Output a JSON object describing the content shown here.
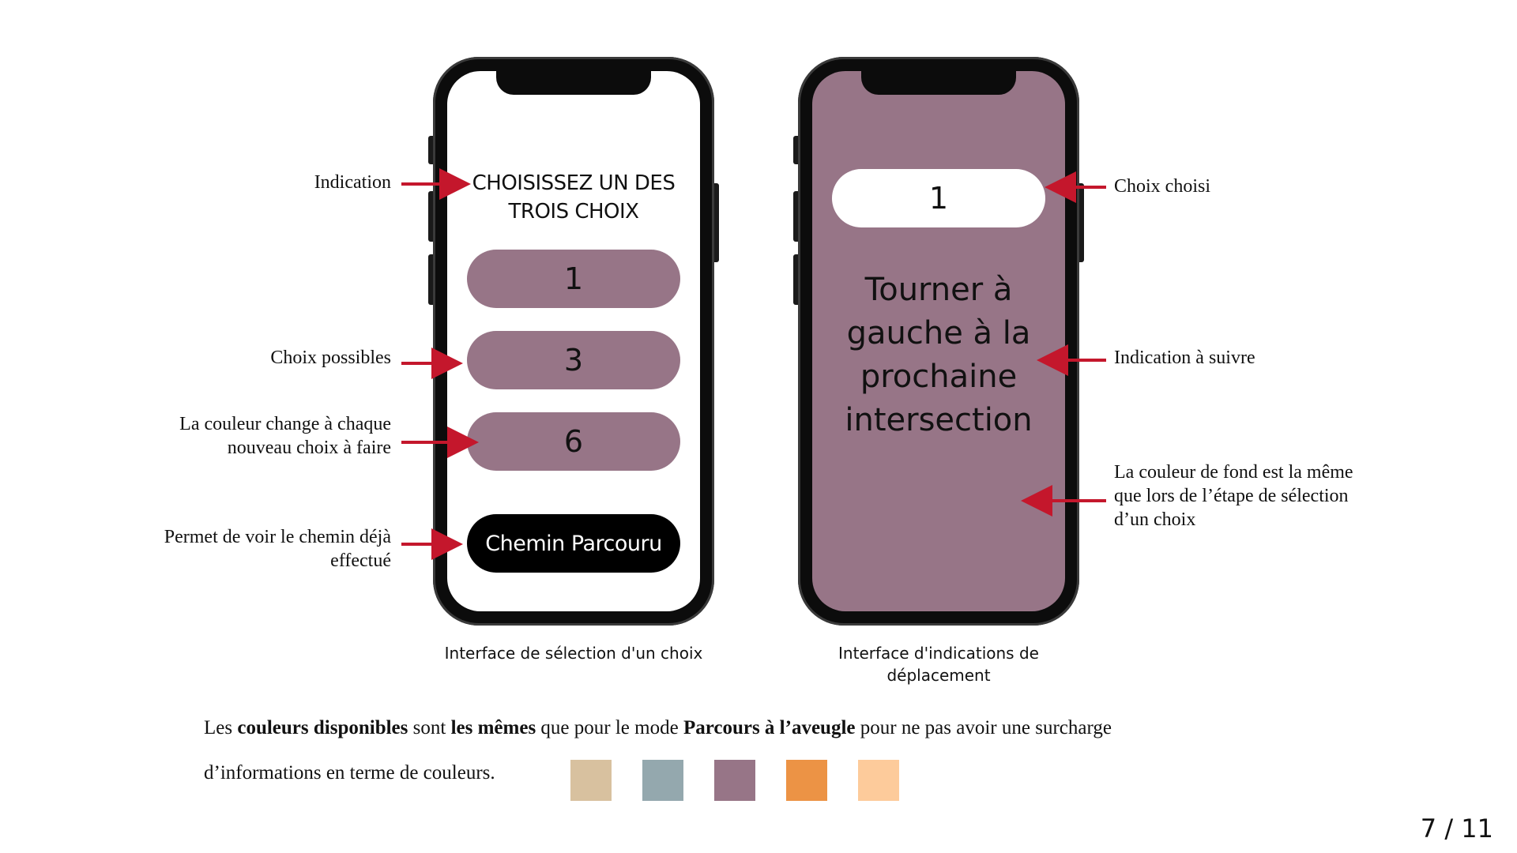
{
  "phone1": {
    "title_line1": "CHOISISSEZ UN DES",
    "title_line2": "TROIS CHOIX",
    "choices": [
      "1",
      "3",
      "6"
    ],
    "path_button": "Chemin Parcouru",
    "caption": "Interface de sélection d'un choix",
    "choice_color": "#977587"
  },
  "phone2": {
    "chosen": "1",
    "direction_lines": [
      "Tourner à",
      "gauche à la",
      "prochaine",
      "intersection"
    ],
    "caption_line1": "Interface d'indications de",
    "caption_line2": "déplacement",
    "background_color": "#977587"
  },
  "annotations": {
    "indication": "Indication",
    "choix_possibles": "Choix possibles",
    "couleur_change_1": "La couleur change à chaque",
    "couleur_change_2": "nouveau choix à faire",
    "permet_voir_1": "Permet de voir le chemin déjà",
    "permet_voir_2": "effectué",
    "choix_choisi": "Choix choisi",
    "indication_suivre": "Indication à suivre",
    "fond_1": "La couleur de fond est la même",
    "fond_2": "que lors de l’étape de sélection",
    "fond_3": "d’un choix",
    "arrow_color": "#c4172c"
  },
  "footer": {
    "p1": "Les ",
    "b1": "couleurs disponibles",
    "p2": " sont ",
    "b2": "les mêmes",
    "p3": " que pour le mode ",
    "b3": "Parcours à l’aveugle",
    "p4": " pour ne pas avoir une surcharge",
    "line2": "d’informations en terme de couleurs."
  },
  "swatches": [
    "#d8c19f",
    "#94a8ae",
    "#977587",
    "#ec9345",
    "#fdcb9b"
  ],
  "page_number": "7 / 11"
}
